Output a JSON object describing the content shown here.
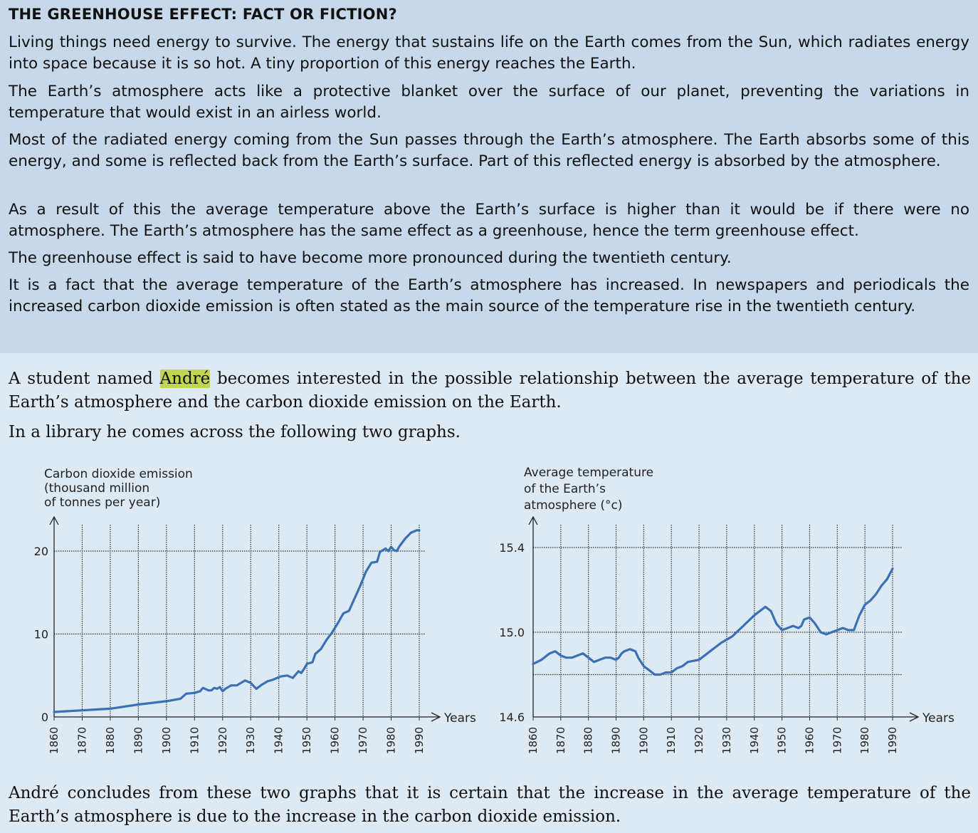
{
  "top": {
    "title": "THE GREENHOUSE EFFECT: FACT OR FICTION?",
    "paragraphs": [
      "Living things need energy to survive. The energy that sustains life on the Earth comes from the Sun, which radiates energy into space because it is so hot. A tiny proportion of this energy reaches the Earth.",
      "The Earth’s atmosphere acts like a protective blanket over the surface of our planet, preventing the variations in temperature that would exist in an airless world.",
      "Most of the radiated energy coming from the Sun passes through the Earth’s atmosphere. The Earth absorbs some of this energy, and some is reflected back from the Earth’s surface. Part of this reflected energy is absorbed by the atmosphere.",
      "As a result of this the average temperature above the Earth’s surface is higher than it would be if there were no atmosphere. The Earth’s atmosphere has the same effect as a greenhouse, hence the term greenhouse effect.",
      "The greenhouse effect is said to have become more pronounced during the twentieth century.",
      "It is a fact that the average temperature of the Earth’s atmosphere has increased. In newspapers and periodicals the increased carbon dioxide emission is often stated as the main source of the temperature rise in the twentieth century."
    ]
  },
  "intro": {
    "p1_before": "A student named ",
    "p1_name": "André",
    "p1_after": " becomes interested in the possible relationship between the average temperature of the Earth’s atmosphere and the carbon dioxide emission on the Earth.",
    "p2": "In a library he comes across the following two graphs."
  },
  "conclusion": "André concludes from these two graphs that it is certain that the increase in the average temperature of the Earth’s atmosphere is due to the increase in the carbon dioxide emission.",
  "colors": {
    "line": "#3a70b5",
    "panel_top": "#c6d8e9",
    "background": "#dde9f3",
    "highlight": "#c2d552"
  },
  "chart_data": [
    {
      "type": "line",
      "ylabel": [
        "Carbon dioxide emission",
        "(thousand million",
        "of tonnes per year)"
      ],
      "xlabel": "Years",
      "xlim": [
        1860,
        1990
      ],
      "ylim": [
        0,
        20
      ],
      "xticks": [
        "1860",
        "1870",
        "1880",
        "1890",
        "1900",
        "1910",
        "1920",
        "1930",
        "1940",
        "1950",
        "1960",
        "1970",
        "1980",
        "1990"
      ],
      "yticks": [
        "0",
        "10",
        "20"
      ],
      "grid": true,
      "x": [
        1860,
        1870,
        1880,
        1890,
        1900,
        1905,
        1907,
        1910,
        1912,
        1913,
        1915,
        1916,
        1917,
        1918,
        1919,
        1920,
        1921,
        1923,
        1925,
        1927,
        1928,
        1930,
        1932,
        1934,
        1936,
        1938,
        1940,
        1941,
        1943,
        1945,
        1947,
        1948,
        1949,
        1950,
        1952,
        1953,
        1955,
        1957,
        1959,
        1961,
        1963,
        1965,
        1967,
        1969,
        1971,
        1973,
        1975,
        1976,
        1978,
        1979,
        1980,
        1981,
        1982,
        1983,
        1985,
        1987,
        1989,
        1990
      ],
      "y": [
        0.6,
        0.8,
        1.0,
        1.5,
        1.9,
        2.2,
        2.8,
        2.9,
        3.1,
        3.5,
        3.2,
        3.2,
        3.5,
        3.4,
        3.6,
        3.1,
        3.4,
        3.8,
        3.8,
        4.2,
        4.4,
        4.1,
        3.4,
        3.9,
        4.3,
        4.5,
        4.8,
        4.9,
        5.0,
        4.7,
        5.5,
        5.3,
        5.8,
        6.4,
        6.6,
        7.6,
        8.2,
        9.3,
        10.2,
        11.3,
        12.5,
        12.8,
        14.3,
        15.8,
        17.5,
        18.6,
        18.7,
        19.9,
        20.3,
        20.0,
        20.5,
        20.1,
        20.0,
        20.6,
        21.5,
        22.2,
        22.5,
        22.5
      ]
    },
    {
      "type": "line",
      "ylabel": [
        "Average temperature",
        "of the Earth’s",
        "atmosphere (°c)"
      ],
      "xlabel": "Years",
      "xlim": [
        1860,
        1990
      ],
      "ylim": [
        14.6,
        15.4
      ],
      "xticks": [
        "1860",
        "1870",
        "1880",
        "1890",
        "1900",
        "1910",
        "1920",
        "1930",
        "1940",
        "1950",
        "1960",
        "1970",
        "1980",
        "1990"
      ],
      "yticks": [
        "14.6",
        "15.0",
        "15.4"
      ],
      "grid": true,
      "x": [
        1860,
        1863,
        1866,
        1868,
        1870,
        1872,
        1874,
        1876,
        1878,
        1880,
        1882,
        1884,
        1886,
        1888,
        1890,
        1891,
        1892,
        1893,
        1895,
        1897,
        1898,
        1900,
        1902,
        1904,
        1906,
        1908,
        1910,
        1912,
        1914,
        1916,
        1920,
        1924,
        1928,
        1932,
        1936,
        1940,
        1942,
        1944,
        1946,
        1948,
        1950,
        1952,
        1954,
        1956,
        1957,
        1958,
        1960,
        1962,
        1964,
        1966,
        1968,
        1970,
        1972,
        1974,
        1976,
        1978,
        1980,
        1982,
        1984,
        1986,
        1988,
        1990
      ],
      "y": [
        14.85,
        14.87,
        14.9,
        14.91,
        14.89,
        14.88,
        14.88,
        14.89,
        14.9,
        14.88,
        14.86,
        14.87,
        14.88,
        14.88,
        14.87,
        14.88,
        14.9,
        14.91,
        14.92,
        14.91,
        14.88,
        14.84,
        14.82,
        14.8,
        14.8,
        14.81,
        14.81,
        14.83,
        14.84,
        14.86,
        14.87,
        14.91,
        14.95,
        14.98,
        15.03,
        15.08,
        15.1,
        15.12,
        15.1,
        15.04,
        15.01,
        15.02,
        15.03,
        15.02,
        15.03,
        15.06,
        15.07,
        15.04,
        15.0,
        14.99,
        15.0,
        15.01,
        15.02,
        15.01,
        15.01,
        15.08,
        15.13,
        15.15,
        15.18,
        15.22,
        15.25,
        15.3
      ]
    }
  ]
}
